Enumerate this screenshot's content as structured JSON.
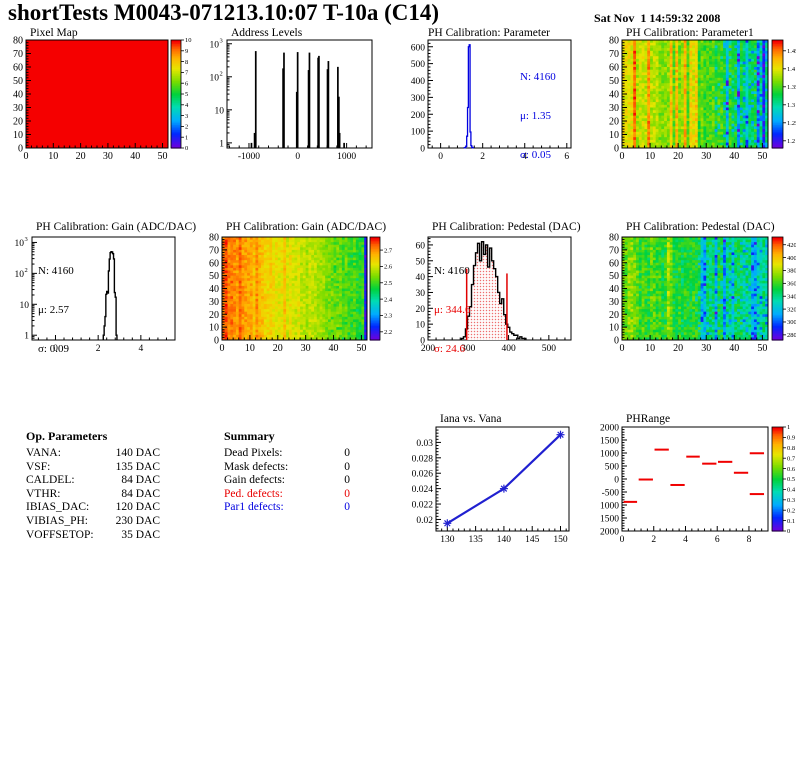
{
  "header": {
    "title": "shortTests M0043-071213.10:07 T-10a (C14)",
    "date": "Sat Nov  1 14:59:32 2008"
  },
  "colors": {
    "accent_blue": "#0000e0",
    "accent_red": "#e80000",
    "hist_black": "#000000",
    "map_red": "#f40000"
  },
  "op_parameters": {
    "title": "Op. Parameters",
    "rows": [
      {
        "label": "VANA:",
        "value": "140 DAC"
      },
      {
        "label": "VSF:",
        "value": "135 DAC"
      },
      {
        "label": "CALDEL:",
        "value": "84 DAC"
      },
      {
        "label": "VTHR:",
        "value": "84 DAC"
      },
      {
        "label": "IBIAS_DAC:",
        "value": "120 DAC"
      },
      {
        "label": "VIBIAS_PH:",
        "value": "230 DAC"
      },
      {
        "label": "VOFFSETOP:",
        "value": "35 DAC"
      }
    ]
  },
  "summary": {
    "title": "Summary",
    "rows": [
      {
        "label": "Dead Pixels:",
        "value": "0",
        "color": "#000000"
      },
      {
        "label": "Mask defects:",
        "value": "0",
        "color": "#000000"
      },
      {
        "label": "Gain defects:",
        "value": "0",
        "color": "#000000"
      },
      {
        "label": "Ped. defects:",
        "value": "0",
        "color": "#e80000"
      },
      {
        "label": "Par1 defects:",
        "value": "0",
        "color": "#0000e0"
      }
    ]
  },
  "chart_data": [
    {
      "id": "pixel_map",
      "type": "heatmap",
      "title": "Pixel Map",
      "xlim": [
        0,
        52
      ],
      "ylim": [
        0,
        80
      ],
      "xticks": [
        [
          0,
          "0"
        ],
        [
          10,
          "10"
        ],
        [
          20,
          "20"
        ],
        [
          30,
          "30"
        ],
        [
          40,
          "40"
        ],
        [
          50,
          "50"
        ]
      ],
      "yticks": [
        [
          0,
          "0"
        ],
        [
          10,
          "10"
        ],
        [
          20,
          "20"
        ],
        [
          30,
          "30"
        ],
        [
          40,
          "40"
        ],
        [
          50,
          "50"
        ],
        [
          60,
          "60"
        ],
        [
          70,
          "70"
        ],
        [
          80,
          "80"
        ]
      ],
      "zmin": 0,
      "zmax": 10,
      "zticks": [
        [
          0,
          "0"
        ],
        [
          1,
          "1"
        ],
        [
          2,
          "2"
        ],
        [
          3,
          "3"
        ],
        [
          4,
          "4"
        ],
        [
          5,
          "5"
        ],
        [
          6,
          "6"
        ],
        [
          7,
          "7"
        ],
        [
          8,
          "8"
        ],
        [
          9,
          "9"
        ],
        [
          10,
          "10"
        ]
      ],
      "pattern": {
        "uniform": 10
      }
    },
    {
      "id": "address_levels",
      "type": "spikes",
      "title": "Address Levels",
      "color": "#000000",
      "xlim": [
        -1450,
        1520
      ],
      "xticks": [
        [
          -1000,
          "-1000"
        ],
        [
          0,
          "0"
        ],
        [
          1000,
          "1000"
        ]
      ],
      "ylog": true,
      "ylim": [
        0.7,
        1300
      ],
      "yticks": [
        [
          1,
          "1"
        ],
        [
          10,
          "10"
        ],
        [
          100,
          "10^2"
        ],
        [
          1000,
          "10^3"
        ]
      ],
      "spikes": [
        [
          -950,
          1
        ],
        [
          -886,
          2
        ],
        [
          -862,
          600
        ],
        [
          -302,
          180
        ],
        [
          -284,
          540
        ],
        [
          -22,
          35
        ],
        [
          -4,
          560
        ],
        [
          220,
          160
        ],
        [
          238,
          540
        ],
        [
          416,
          380
        ],
        [
          432,
          430
        ],
        [
          608,
          170
        ],
        [
          626,
          300
        ],
        [
          820,
          200
        ],
        [
          840,
          25
        ],
        [
          856,
          2
        ],
        [
          948,
          1
        ]
      ]
    },
    {
      "id": "ph_param",
      "type": "histogram",
      "title": "PH Calibration: Parameter",
      "color": "#0000e0",
      "line_width": 1.3,
      "bin_width": 0.04,
      "xlim": [
        -0.6,
        6.2
      ],
      "xticks": [
        [
          0,
          "0"
        ],
        [
          2,
          "2"
        ],
        [
          4,
          "4"
        ],
        [
          6,
          "6"
        ]
      ],
      "ylim": [
        0,
        640
      ],
      "yticks": [
        [
          0,
          "0"
        ],
        [
          100,
          "100"
        ],
        [
          200,
          "200"
        ],
        [
          300,
          "300"
        ],
        [
          400,
          "400"
        ],
        [
          500,
          "500"
        ],
        [
          600,
          "600"
        ]
      ],
      "bins": [
        [
          1.12,
          1
        ],
        [
          1.16,
          3
        ],
        [
          1.2,
          10
        ],
        [
          1.24,
          70
        ],
        [
          1.28,
          240
        ],
        [
          1.32,
          600
        ],
        [
          1.36,
          612
        ],
        [
          1.4,
          95
        ],
        [
          1.44,
          14
        ],
        [
          1.48,
          4
        ],
        [
          1.52,
          1
        ]
      ],
      "stats": {
        "lines": [
          "N: 4160",
          "μ: 1.35",
          "σ: 0.05"
        ],
        "colors": [
          "#0000e0",
          "#0000e0",
          "#0000e0"
        ]
      }
    },
    {
      "id": "param1_map",
      "type": "heatmap",
      "title": "PH Calibration: Parameter1",
      "xlim": [
        0,
        52
      ],
      "ylim": [
        0,
        80
      ],
      "xticks": [
        [
          0,
          "0"
        ],
        [
          10,
          "10"
        ],
        [
          20,
          "20"
        ],
        [
          30,
          "30"
        ],
        [
          40,
          "40"
        ],
        [
          50,
          "50"
        ]
      ],
      "yticks": [
        [
          0,
          "0"
        ],
        [
          10,
          "10"
        ],
        [
          20,
          "20"
        ],
        [
          30,
          "30"
        ],
        [
          40,
          "40"
        ],
        [
          50,
          "50"
        ],
        [
          60,
          "60"
        ],
        [
          70,
          "70"
        ],
        [
          80,
          "80"
        ]
      ],
      "zmin": 1.18,
      "zmax": 1.48,
      "zticks": [
        [
          1.45,
          "1.45"
        ],
        [
          1.4,
          "1.4"
        ],
        [
          1.35,
          "1.35"
        ],
        [
          1.3,
          "1.3"
        ],
        [
          1.25,
          "1.25"
        ],
        [
          1.2,
          "1.2"
        ]
      ],
      "pattern": {
        "seed": 11,
        "base_left": 1.405,
        "base_right": 1.312,
        "noise": 0.02,
        "col_jitter": 0.016,
        "hot_cols": [
          4,
          9,
          17,
          19,
          22,
          24,
          25,
          26
        ],
        "hot_delta": 0.05,
        "cold_cols": [
          37,
          41,
          44,
          48,
          50
        ],
        "cold_delta": -0.07,
        "cold_start": 33,
        "spot_delta": -0.06
      }
    },
    {
      "id": "gain_hist",
      "type": "histogram",
      "title": "PH Calibration: Gain (ADC/DAC)",
      "color": "#000000",
      "line_width": 1.4,
      "bin_width": 0.04,
      "xlim": [
        -1.1,
        5.6
      ],
      "xticks": [
        [
          0,
          "0"
        ],
        [
          2,
          "2"
        ],
        [
          4,
          "4"
        ]
      ],
      "ylog": true,
      "ylim": [
        0.7,
        1500
      ],
      "yticks": [
        [
          1,
          "1"
        ],
        [
          10,
          "10"
        ],
        [
          100,
          "10^2"
        ],
        [
          1000,
          "10^3"
        ]
      ],
      "bins": [
        [
          2.24,
          1
        ],
        [
          2.28,
          2
        ],
        [
          2.32,
          4
        ],
        [
          2.36,
          21
        ],
        [
          2.4,
          26
        ],
        [
          2.44,
          23
        ],
        [
          2.48,
          120
        ],
        [
          2.52,
          290
        ],
        [
          2.56,
          465
        ],
        [
          2.6,
          500
        ],
        [
          2.64,
          488
        ],
        [
          2.68,
          432
        ],
        [
          2.72,
          292
        ],
        [
          2.76,
          24
        ],
        [
          2.8,
          17
        ],
        [
          2.84,
          1
        ]
      ],
      "stats": {
        "lines": [
          "N: 4160",
          "μ: 2.57",
          "σ: 0.09"
        ],
        "colors": [
          "#000000",
          "#000000",
          "#000000"
        ]
      }
    },
    {
      "id": "gain_map",
      "type": "heatmap",
      "title": "PH Calibration: Gain (ADC/DAC)",
      "xlim": [
        0,
        52
      ],
      "ylim": [
        0,
        80
      ],
      "xticks": [
        [
          0,
          "0"
        ],
        [
          10,
          "10"
        ],
        [
          20,
          "20"
        ],
        [
          30,
          "30"
        ],
        [
          40,
          "40"
        ],
        [
          50,
          "50"
        ]
      ],
      "yticks": [
        [
          0,
          "0"
        ],
        [
          10,
          "10"
        ],
        [
          20,
          "20"
        ],
        [
          30,
          "30"
        ],
        [
          40,
          "40"
        ],
        [
          50,
          "50"
        ],
        [
          60,
          "60"
        ],
        [
          70,
          "70"
        ],
        [
          80,
          "80"
        ]
      ],
      "zmin": 2.15,
      "zmax": 2.78,
      "zticks": [
        [
          2.7,
          "2.7"
        ],
        [
          2.6,
          "2.6"
        ],
        [
          2.5,
          "2.5"
        ],
        [
          2.4,
          "2.4"
        ],
        [
          2.3,
          "2.3"
        ],
        [
          2.2,
          "2.2"
        ]
      ],
      "pattern": {
        "seed": 5,
        "base_left": 2.72,
        "base_right": 2.49,
        "noise": 0.03,
        "col_jitter": 0.018,
        "hot_cols": [
          1,
          3,
          6,
          10,
          12,
          22
        ],
        "hot_delta": 0.03,
        "cold_cols": [
          51
        ],
        "cold_delta": -0.22,
        "cold_start": 38,
        "spot_delta": -0.04
      }
    },
    {
      "id": "ped_hist",
      "type": "histogram",
      "title": "PH Calibration: Pedestal (DAC)",
      "color": "#000000",
      "line_width": 1.4,
      "bin_width": 5,
      "xlim": [
        200,
        555
      ],
      "xticks": [
        [
          200,
          "200"
        ],
        [
          300,
          "300"
        ],
        [
          400,
          "400"
        ],
        [
          500,
          "500"
        ]
      ],
      "ylim": [
        0,
        65
      ],
      "yticks": [
        [
          0,
          "0"
        ],
        [
          10,
          "10"
        ],
        [
          20,
          "20"
        ],
        [
          30,
          "30"
        ],
        [
          40,
          "40"
        ],
        [
          50,
          "50"
        ],
        [
          60,
          "60"
        ]
      ],
      "bins": [
        [
          283,
          1
        ],
        [
          288,
          2
        ],
        [
          293,
          7
        ],
        [
          298,
          15
        ],
        [
          303,
          21
        ],
        [
          308,
          35
        ],
        [
          313,
          47
        ],
        [
          318,
          55
        ],
        [
          323,
          61
        ],
        [
          328,
          50
        ],
        [
          333,
          62
        ],
        [
          338,
          54
        ],
        [
          343,
          60
        ],
        [
          348,
          46
        ],
        [
          353,
          58
        ],
        [
          358,
          50
        ],
        [
          363,
          45
        ],
        [
          368,
          40
        ],
        [
          373,
          30
        ],
        [
          378,
          23
        ],
        [
          383,
          26
        ],
        [
          388,
          16
        ],
        [
          393,
          10
        ],
        [
          398,
          8
        ],
        [
          403,
          5
        ],
        [
          408,
          4
        ],
        [
          413,
          3
        ],
        [
          418,
          3
        ],
        [
          423,
          1
        ],
        [
          428,
          2
        ],
        [
          433,
          1
        ],
        [
          438,
          1
        ]
      ],
      "fill": {
        "from": 295,
        "to": 395,
        "color": "#e00000"
      },
      "vlines": [
        [
          296,
          45
        ],
        [
          396,
          42
        ]
      ],
      "stats": {
        "lines": [
          "N: 4160",
          "μ: 344.6",
          "σ: 24.6"
        ],
        "colors": [
          "#000000",
          "#e80000",
          "#e80000"
        ]
      }
    },
    {
      "id": "ped_map",
      "type": "heatmap",
      "title": "PH Calibration: Pedestal (DAC)",
      "xlim": [
        0,
        52
      ],
      "ylim": [
        0,
        80
      ],
      "xticks": [
        [
          0,
          "0"
        ],
        [
          10,
          "10"
        ],
        [
          20,
          "20"
        ],
        [
          30,
          "30"
        ],
        [
          40,
          "40"
        ],
        [
          50,
          "50"
        ]
      ],
      "yticks": [
        [
          0,
          "0"
        ],
        [
          10,
          "10"
        ],
        [
          20,
          "20"
        ],
        [
          30,
          "30"
        ],
        [
          40,
          "40"
        ],
        [
          50,
          "50"
        ],
        [
          60,
          "60"
        ],
        [
          70,
          "70"
        ],
        [
          80,
          "80"
        ]
      ],
      "zmin": 272,
      "zmax": 432,
      "zticks": [
        [
          420,
          "420"
        ],
        [
          400,
          "400"
        ],
        [
          380,
          "380"
        ],
        [
          360,
          "360"
        ],
        [
          340,
          "340"
        ],
        [
          320,
          "320"
        ],
        [
          300,
          "300"
        ],
        [
          280,
          "280"
        ]
      ],
      "pattern": {
        "seed": 23,
        "base_left": 366,
        "base_right": 339,
        "noise": 13,
        "col_jitter": 7,
        "hot_cols": [
          0,
          2,
          3,
          16,
          17
        ],
        "hot_delta": 14,
        "cold_cols": [
          28,
          29,
          33,
          36,
          39,
          46,
          47
        ],
        "cold_delta": -30,
        "cold_start": 26,
        "spot_delta": -24
      }
    },
    {
      "id": "iana",
      "type": "line",
      "title": "Iana vs. Vana",
      "color": "#2020d0",
      "x": [
        130,
        140,
        150
      ],
      "y": [
        0.0195,
        0.024,
        0.031
      ],
      "xlim": [
        128,
        151.5
      ],
      "xticks": [
        [
          130,
          "130"
        ],
        [
          135,
          "135"
        ],
        [
          140,
          "140"
        ],
        [
          145,
          "145"
        ],
        [
          150,
          "150"
        ]
      ],
      "ylim": [
        0.0185,
        0.032
      ],
      "yticks": [
        [
          0.02,
          "0.02"
        ],
        [
          0.022,
          "0.022"
        ],
        [
          0.024,
          "0.024"
        ],
        [
          0.026,
          "0.026"
        ],
        [
          0.028,
          "0.028"
        ],
        [
          0.03,
          "0.03"
        ]
      ]
    },
    {
      "id": "phrange",
      "type": "dashes",
      "title": "PHRange",
      "color": "#f00000",
      "xlim": [
        0,
        9.2
      ],
      "xticks": [
        [
          0,
          "0"
        ],
        [
          2,
          "2"
        ],
        [
          4,
          "4"
        ],
        [
          6,
          "6"
        ],
        [
          8,
          "8"
        ]
      ],
      "ylim": [
        -2000,
        2000
      ],
      "yticks": [
        [
          2000,
          "2000"
        ],
        [
          1500,
          "1500"
        ],
        [
          1000,
          "1000"
        ],
        [
          500,
          "500"
        ],
        [
          0,
          "0"
        ],
        [
          -500,
          "-500"
        ],
        [
          -1000,
          "1000"
        ],
        [
          -1500,
          "1500"
        ],
        [
          -2000,
          "2000"
        ]
      ],
      "zmin": 0,
      "zmax": 1,
      "zticks": [
        [
          1,
          "1"
        ],
        [
          0.9,
          "0.9"
        ],
        [
          0.8,
          "0.8"
        ],
        [
          0.7,
          "0.7"
        ],
        [
          0.6,
          "0.6"
        ],
        [
          0.5,
          "0.5"
        ],
        [
          0.4,
          "0.4"
        ],
        [
          0.3,
          "0.3"
        ],
        [
          0.2,
          "0.2"
        ],
        [
          0.1,
          "0.1"
        ],
        [
          0,
          "0"
        ]
      ],
      "segments": [
        [
          0.1,
          0.95,
          -880
        ],
        [
          1.05,
          1.95,
          -20
        ],
        [
          2.05,
          2.95,
          1130
        ],
        [
          3.05,
          3.95,
          -230
        ],
        [
          4.05,
          4.9,
          860
        ],
        [
          5.05,
          5.95,
          590
        ],
        [
          6.05,
          6.95,
          660
        ],
        [
          7.05,
          7.95,
          240
        ],
        [
          8.05,
          8.95,
          990
        ],
        [
          8.05,
          8.95,
          -580
        ]
      ]
    }
  ]
}
